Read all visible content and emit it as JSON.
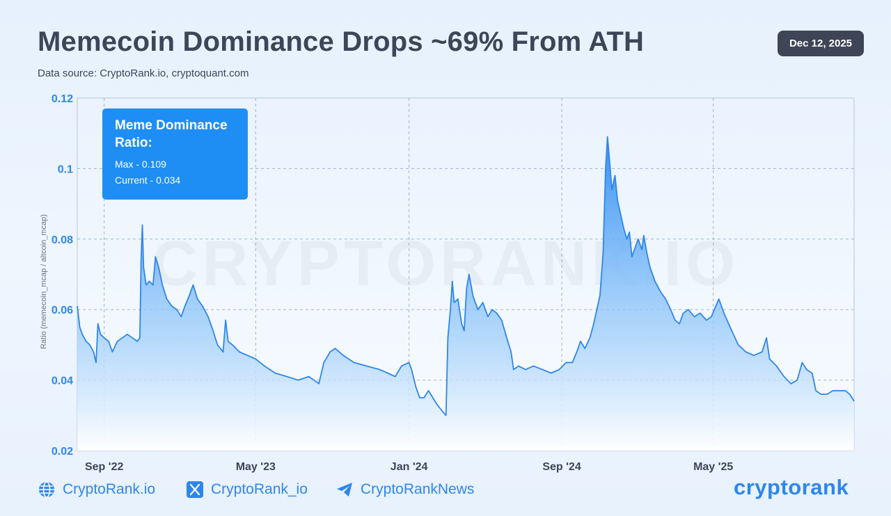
{
  "header": {
    "title": "Memecoin Dominance Drops ~69% From ATH",
    "subtitle": "Data source: CryptoRank.io, cryptoquant.com",
    "date": "Dec 12, 2025"
  },
  "annotation": {
    "title": "Meme Dominance Ratio:",
    "max": "Max - 0.109",
    "current": "Current - 0.034"
  },
  "watermark": "CRYPTORANK.IO",
  "footer": {
    "website": "CryptoRank.io",
    "x_handle": "CryptoRank_io",
    "telegram": "CryptoRankNews",
    "brand": "cryptorank"
  },
  "colors": {
    "line": "#2f86ea",
    "fill_top": "#2e8cf2",
    "accent": "#2f86ea",
    "badge": "#3e4556"
  },
  "chart_data": {
    "type": "area",
    "title": "Memecoin Dominance Drops ~69% From ATH",
    "ylabel": "Ratio (memecoin_mcap / altcoin_mcap)",
    "xlabel": "",
    "ylim": [
      0.02,
      0.12
    ],
    "xlim": [
      "2022-07-20",
      "2025-12-12"
    ],
    "y_ticks": [
      "0.02",
      "0.04",
      "0.06",
      "0.08",
      "0.1",
      "0.12"
    ],
    "x_ticks": [
      {
        "label": "Sep '22",
        "date": "2022-09-01"
      },
      {
        "label": "May '23",
        "date": "2023-05-01"
      },
      {
        "label": "Jan '24",
        "date": "2024-01-01"
      },
      {
        "label": "Sep '24",
        "date": "2024-09-01"
      },
      {
        "label": "May '25",
        "date": "2025-05-01"
      }
    ],
    "grid": true,
    "series": [
      {
        "name": "Meme Dominance Ratio",
        "points": [
          [
            "2022-07-20",
            0.061
          ],
          [
            "2022-07-24",
            0.055
          ],
          [
            "2022-07-28",
            0.053
          ],
          [
            "2022-08-03",
            0.051
          ],
          [
            "2022-08-09",
            0.05
          ],
          [
            "2022-08-15",
            0.048
          ],
          [
            "2022-08-19",
            0.045
          ],
          [
            "2022-08-22",
            0.056
          ],
          [
            "2022-08-26",
            0.053
          ],
          [
            "2022-09-01",
            0.052
          ],
          [
            "2022-09-08",
            0.051
          ],
          [
            "2022-09-14",
            0.048
          ],
          [
            "2022-09-22",
            0.051
          ],
          [
            "2022-09-30",
            0.052
          ],
          [
            "2022-10-08",
            0.053
          ],
          [
            "2022-10-16",
            0.052
          ],
          [
            "2022-10-24",
            0.051
          ],
          [
            "2022-10-28",
            0.052
          ],
          [
            "2022-10-30",
            0.074
          ],
          [
            "2022-11-01",
            0.084
          ],
          [
            "2022-11-03",
            0.072
          ],
          [
            "2022-11-07",
            0.067
          ],
          [
            "2022-11-12",
            0.068
          ],
          [
            "2022-11-18",
            0.067
          ],
          [
            "2022-11-22",
            0.075
          ],
          [
            "2022-11-27",
            0.072
          ],
          [
            "2022-12-03",
            0.067
          ],
          [
            "2022-12-10",
            0.063
          ],
          [
            "2022-12-18",
            0.061
          ],
          [
            "2022-12-26",
            0.06
          ],
          [
            "2023-01-02",
            0.058
          ],
          [
            "2023-01-08",
            0.061
          ],
          [
            "2023-01-15",
            0.064
          ],
          [
            "2023-01-21",
            0.067
          ],
          [
            "2023-01-28",
            0.063
          ],
          [
            "2023-02-05",
            0.061
          ],
          [
            "2023-02-14",
            0.058
          ],
          [
            "2023-02-22",
            0.054
          ],
          [
            "2023-03-01",
            0.05
          ],
          [
            "2023-03-10",
            0.048
          ],
          [
            "2023-03-14",
            0.057
          ],
          [
            "2023-03-18",
            0.051
          ],
          [
            "2023-03-25",
            0.05
          ],
          [
            "2023-04-05",
            0.048
          ],
          [
            "2023-04-18",
            0.047
          ],
          [
            "2023-05-01",
            0.046
          ],
          [
            "2023-05-15",
            0.044
          ],
          [
            "2023-06-01",
            0.042
          ],
          [
            "2023-06-20",
            0.041
          ],
          [
            "2023-07-08",
            0.04
          ],
          [
            "2023-07-25",
            0.041
          ],
          [
            "2023-08-10",
            0.039
          ],
          [
            "2023-08-18",
            0.045
          ],
          [
            "2023-08-28",
            0.048
          ],
          [
            "2023-09-05",
            0.049
          ],
          [
            "2023-09-18",
            0.047
          ],
          [
            "2023-10-05",
            0.045
          ],
          [
            "2023-10-25",
            0.044
          ],
          [
            "2023-11-15",
            0.043
          ],
          [
            "2023-11-28",
            0.042
          ],
          [
            "2023-12-10",
            0.041
          ],
          [
            "2023-12-20",
            0.044
          ],
          [
            "2024-01-01",
            0.045
          ],
          [
            "2024-01-05",
            0.043
          ],
          [
            "2024-01-12",
            0.038
          ],
          [
            "2024-01-18",
            0.035
          ],
          [
            "2024-01-25",
            0.035
          ],
          [
            "2024-02-01",
            0.037
          ],
          [
            "2024-02-08",
            0.035
          ],
          [
            "2024-02-15",
            0.033
          ],
          [
            "2024-02-24",
            0.031
          ],
          [
            "2024-02-29",
            0.03
          ],
          [
            "2024-03-03",
            0.052
          ],
          [
            "2024-03-07",
            0.06
          ],
          [
            "2024-03-10",
            0.068
          ],
          [
            "2024-03-13",
            0.062
          ],
          [
            "2024-03-19",
            0.063
          ],
          [
            "2024-03-25",
            0.056
          ],
          [
            "2024-03-29",
            0.054
          ],
          [
            "2024-04-02",
            0.066
          ],
          [
            "2024-04-06",
            0.07
          ],
          [
            "2024-04-12",
            0.064
          ],
          [
            "2024-04-20",
            0.06
          ],
          [
            "2024-04-28",
            0.062
          ],
          [
            "2024-05-06",
            0.058
          ],
          [
            "2024-05-13",
            0.06
          ],
          [
            "2024-05-20",
            0.059
          ],
          [
            "2024-05-28",
            0.057
          ],
          [
            "2024-06-05",
            0.052
          ],
          [
            "2024-06-12",
            0.048
          ],
          [
            "2024-06-16",
            0.043
          ],
          [
            "2024-06-24",
            0.044
          ],
          [
            "2024-07-05",
            0.043
          ],
          [
            "2024-07-18",
            0.044
          ],
          [
            "2024-08-01",
            0.043
          ],
          [
            "2024-08-15",
            0.042
          ],
          [
            "2024-08-28",
            0.043
          ],
          [
            "2024-09-08",
            0.045
          ],
          [
            "2024-09-18",
            0.045
          ],
          [
            "2024-09-25",
            0.048
          ],
          [
            "2024-10-01",
            0.051
          ],
          [
            "2024-10-08",
            0.049
          ],
          [
            "2024-10-16",
            0.052
          ],
          [
            "2024-10-22",
            0.056
          ],
          [
            "2024-10-27",
            0.06
          ],
          [
            "2024-11-01",
            0.064
          ],
          [
            "2024-11-06",
            0.076
          ],
          [
            "2024-11-10",
            0.1
          ],
          [
            "2024-11-13",
            0.109
          ],
          [
            "2024-11-16",
            0.103
          ],
          [
            "2024-11-20",
            0.094
          ],
          [
            "2024-11-25",
            0.098
          ],
          [
            "2024-11-29",
            0.091
          ],
          [
            "2024-12-04",
            0.087
          ],
          [
            "2024-12-09",
            0.083
          ],
          [
            "2024-12-14",
            0.08
          ],
          [
            "2024-12-18",
            0.082
          ],
          [
            "2024-12-22",
            0.075
          ],
          [
            "2024-12-26",
            0.077
          ],
          [
            "2025-01-01",
            0.08
          ],
          [
            "2025-01-07",
            0.077
          ],
          [
            "2025-01-10",
            0.081
          ],
          [
            "2025-01-15",
            0.076
          ],
          [
            "2025-01-20",
            0.072
          ],
          [
            "2025-01-28",
            0.068
          ],
          [
            "2025-02-06",
            0.065
          ],
          [
            "2025-02-14",
            0.063
          ],
          [
            "2025-02-22",
            0.06
          ],
          [
            "2025-03-01",
            0.057
          ],
          [
            "2025-03-08",
            0.056
          ],
          [
            "2025-03-14",
            0.059
          ],
          [
            "2025-03-22",
            0.06
          ],
          [
            "2025-04-01",
            0.058
          ],
          [
            "2025-04-10",
            0.059
          ],
          [
            "2025-04-20",
            0.057
          ],
          [
            "2025-04-28",
            0.058
          ],
          [
            "2025-05-05",
            0.061
          ],
          [
            "2025-05-10",
            0.063
          ],
          [
            "2025-05-18",
            0.059
          ],
          [
            "2025-05-28",
            0.055
          ],
          [
            "2025-06-10",
            0.05
          ],
          [
            "2025-06-22",
            0.048
          ],
          [
            "2025-07-05",
            0.047
          ],
          [
            "2025-07-18",
            0.048
          ],
          [
            "2025-07-25",
            0.052
          ],
          [
            "2025-07-30",
            0.046
          ],
          [
            "2025-08-10",
            0.044
          ],
          [
            "2025-08-22",
            0.041
          ],
          [
            "2025-09-02",
            0.039
          ],
          [
            "2025-09-12",
            0.04
          ],
          [
            "2025-09-20",
            0.045
          ],
          [
            "2025-09-27",
            0.043
          ],
          [
            "2025-10-06",
            0.042
          ],
          [
            "2025-10-12",
            0.037
          ],
          [
            "2025-10-20",
            0.036
          ],
          [
            "2025-10-30",
            0.036
          ],
          [
            "2025-11-08",
            0.037
          ],
          [
            "2025-11-18",
            0.037
          ],
          [
            "2025-11-28",
            0.037
          ],
          [
            "2025-12-05",
            0.036
          ],
          [
            "2025-12-12",
            0.034
          ]
        ]
      }
    ]
  }
}
